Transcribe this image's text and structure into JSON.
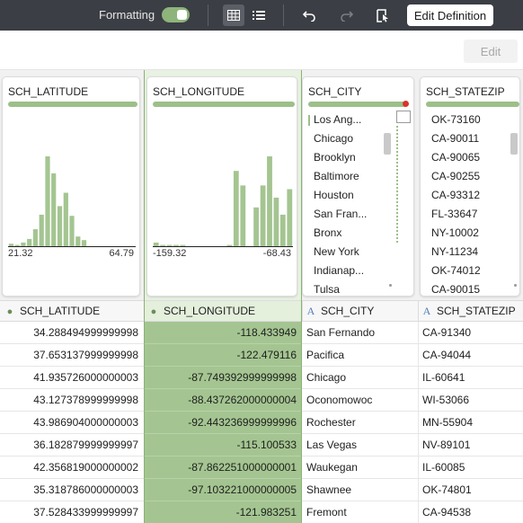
{
  "toolbar": {
    "formatting_label": "Formatting",
    "formatting_on": true,
    "edit_definition_label": "Edit Definition",
    "icons": [
      "table-view-icon",
      "list-view-icon",
      "undo-icon",
      "redo-icon",
      "page-settings-icon"
    ]
  },
  "subbar": {
    "edit_label": "Edit"
  },
  "columns": [
    {
      "name": "SCH_LATITUDE",
      "type": "geo"
    },
    {
      "name": "SCH_LONGITUDE",
      "type": "geo"
    },
    {
      "name": "SCH_CITY",
      "type": "text"
    },
    {
      "name": "SCH_STATEZIP",
      "type": "text"
    }
  ],
  "profiles": {
    "latitude": {
      "title": "SCH_LATITUDE",
      "min_label": "21.32",
      "max_label": "64.79",
      "histogram": [
        2,
        1,
        3,
        6,
        14,
        26,
        74,
        60,
        33,
        44,
        25,
        8,
        5,
        0,
        0,
        0,
        0,
        0,
        0,
        0,
        0
      ]
    },
    "longitude": {
      "title": "SCH_LONGITUDE",
      "min_label": "-159.32",
      "max_label": "-68.43",
      "histogram": [
        3,
        1,
        1,
        1,
        1,
        0,
        0,
        0,
        0,
        0,
        0,
        1,
        62,
        50,
        0,
        32,
        50,
        74,
        40,
        26,
        47
      ]
    },
    "city": {
      "title": "SCH_CITY",
      "items": [
        "Los Ang...",
        "Chicago",
        "Brooklyn",
        "Baltimore",
        "Houston",
        "San Fran...",
        "Bronx",
        "New York",
        "Indianap...",
        "Tulsa"
      ]
    },
    "statezip": {
      "title": "SCH_STATEZIP",
      "items": [
        "OK-73160",
        "CA-90011",
        "CA-90065",
        "CA-90255",
        "CA-93312",
        "FL-33647",
        "NY-10002",
        "NY-11234",
        "OK-74012",
        "CA-90015"
      ]
    }
  },
  "rows": [
    {
      "lat": "34.288494999999998",
      "lon": "-118.433949",
      "city": "San Fernando",
      "zip": "CA-91340"
    },
    {
      "lat": "37.653137999999998",
      "lon": "-122.479116",
      "city": "Pacifica",
      "zip": "CA-94044"
    },
    {
      "lat": "41.935726000000003",
      "lon": "-87.749392999999998",
      "city": "Chicago",
      "zip": "IL-60641"
    },
    {
      "lat": "43.127378999999998",
      "lon": "-88.437262000000004",
      "city": "Oconomowoc",
      "zip": "WI-53066"
    },
    {
      "lat": "43.986904000000003",
      "lon": "-92.443236999999996",
      "city": "Rochester",
      "zip": "MN-55904"
    },
    {
      "lat": "36.182879999999997",
      "lon": "-115.100533",
      "city": "Las Vegas",
      "zip": "NV-89101"
    },
    {
      "lat": "42.356819000000002",
      "lon": "-87.862251000000001",
      "city": "Waukegan",
      "zip": "IL-60085"
    },
    {
      "lat": "35.318786000000003",
      "lon": "-97.103221000000005",
      "city": "Shawnee",
      "zip": "OK-74801"
    },
    {
      "lat": "37.528433999999997",
      "lon": "-121.983251",
      "city": "Fremont",
      "zip": "CA-94538"
    }
  ]
}
